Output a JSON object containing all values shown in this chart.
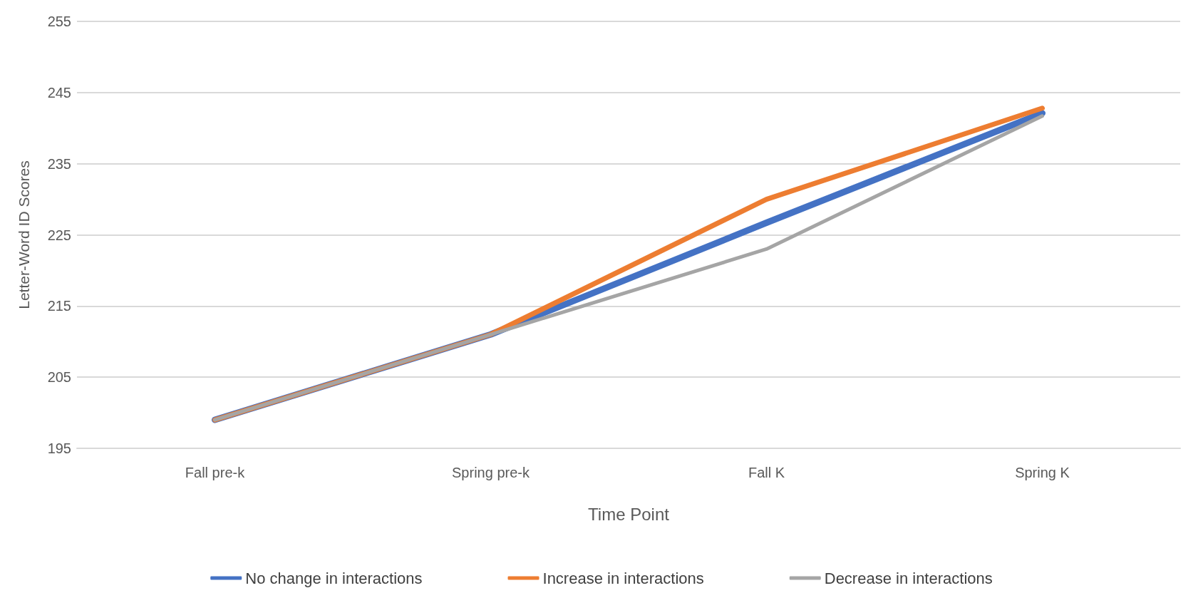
{
  "chart_data": {
    "type": "line",
    "xlabel": "Time Point",
    "ylabel": "Letter-Word ID Scores",
    "categories": [
      "Fall pre-k",
      "Spring pre-k",
      "Fall K",
      "Spring K"
    ],
    "series": [
      {
        "name": "No change in interactions",
        "color": "#4472c4",
        "values": [
          199,
          211,
          226.7,
          242.1
        ]
      },
      {
        "name": "Increase in interactions",
        "color": "#ed7d31",
        "values": [
          199,
          211,
          230.0,
          242.8
        ]
      },
      {
        "name": "Decrease in interactions",
        "color": "#a5a5a5",
        "values": [
          199,
          211,
          223.0,
          241.7
        ]
      }
    ],
    "ylim": [
      195,
      255
    ],
    "yticks": [
      195,
      205,
      215,
      225,
      235,
      245,
      255
    ],
    "grid": "y",
    "legend": "bottom",
    "marker": "none",
    "line_style": "solid"
  }
}
